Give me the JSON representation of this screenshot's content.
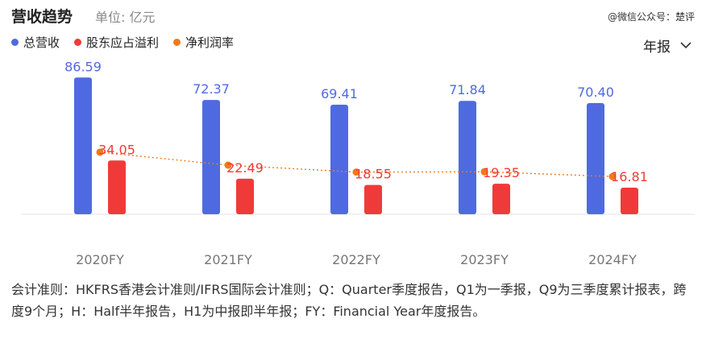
{
  "header": {
    "title": "营收趋势",
    "unit": "单位: 亿元",
    "watermark": "@微信公众号：楚评"
  },
  "legend": [
    {
      "label": "总营收",
      "color": "#4f6ae0"
    },
    {
      "label": "股东应占溢利",
      "color": "#f03a3a"
    },
    {
      "label": "净利润率",
      "color": "#f07a1a"
    }
  ],
  "period_selector": {
    "label": "年报",
    "icon": "chevron-down-icon"
  },
  "chart_data": {
    "type": "bar",
    "categories": [
      "2020FY",
      "2021FY",
      "2022FY",
      "2023FY",
      "2024FY"
    ],
    "series": [
      {
        "name": "总营收",
        "values": [
          86.59,
          72.37,
          69.41,
          71.84,
          70.4
        ],
        "color": "#4f6ae0",
        "value_labels": [
          "86.59",
          "72.37",
          "69.41",
          "71.84",
          "70.40"
        ]
      },
      {
        "name": "股东应占溢利",
        "values": [
          34.05,
          22.49,
          18.55,
          19.35,
          16.81
        ],
        "color": "#f03a3a",
        "value_labels": [
          "34.05",
          "22.49",
          "18.55",
          "19.35",
          "16.81"
        ]
      },
      {
        "name": "净利润率",
        "type": "line",
        "values": [
          39.3,
          31.1,
          26.7,
          26.9,
          23.9
        ],
        "color": "#f07a1a",
        "style": "dotted"
      }
    ],
    "ylim": [
      0,
      100
    ],
    "grid": false,
    "legend_position": "top-left"
  },
  "note": "会计准则：HKFRS香港会计准则/IFRS国际会计准则；Q：Quarter季度报告，Q1为一季报，Q9为三季度累计报表，跨度9个月；H：Half半年报告，H1为中报即半年报；FY：Financial Year年度报告。"
}
